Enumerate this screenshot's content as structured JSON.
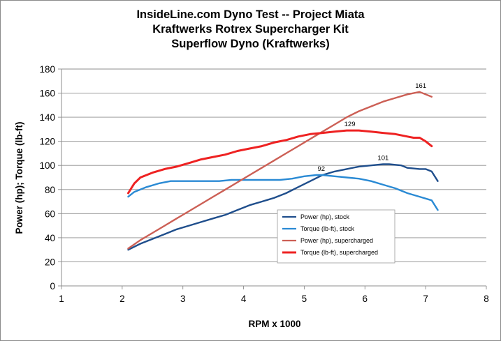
{
  "chart_data": {
    "type": "line",
    "title": "InsideLine.com Dyno Test -- Project Miata",
    "subtitle_1": "Kraftwerks Rotrex Supercharger Kit",
    "subtitle_2": "Superflow Dyno (Kraftwerks)",
    "xlabel": "RPM x 1000",
    "ylabel": "Power (hp); Torque (lb-ft)",
    "xlim": [
      1,
      8
    ],
    "ylim": [
      0,
      180
    ],
    "xticks": [
      "1",
      "2",
      "3",
      "4",
      "5",
      "6",
      "7",
      "8"
    ],
    "yticks": [
      "0",
      "20",
      "40",
      "60",
      "80",
      "100",
      "120",
      "140",
      "160",
      "180"
    ],
    "grid": "horizontal",
    "legend_position": "lower-center",
    "series": [
      {
        "name": "Power (hp), stock",
        "color": "#1f4e8c",
        "x": [
          2.1,
          2.3,
          2.5,
          2.7,
          2.9,
          3.1,
          3.3,
          3.5,
          3.7,
          3.9,
          4.1,
          4.3,
          4.5,
          4.7,
          4.9,
          5.1,
          5.3,
          5.5,
          5.7,
          5.9,
          6.1,
          6.3,
          6.4,
          6.6,
          6.7,
          6.9,
          7.0,
          7.1,
          7.2
        ],
        "y": [
          30,
          35,
          39,
          43,
          47,
          50,
          53,
          56,
          59,
          63,
          67,
          70,
          73,
          77,
          82,
          87,
          92,
          95,
          97,
          99,
          100,
          101,
          101,
          100,
          98,
          97,
          97,
          95,
          87
        ]
      },
      {
        "name": "Torque (lb-ft), stock",
        "color": "#2a8ad4",
        "x": [
          2.1,
          2.2,
          2.4,
          2.6,
          2.8,
          3.0,
          3.2,
          3.4,
          3.6,
          3.8,
          4.0,
          4.2,
          4.4,
          4.6,
          4.8,
          5.0,
          5.2,
          5.3,
          5.5,
          5.7,
          5.9,
          6.1,
          6.3,
          6.5,
          6.7,
          6.9,
          7.1,
          7.2
        ],
        "y": [
          74,
          78,
          82,
          85,
          87,
          87,
          87,
          87,
          87,
          88,
          88,
          88,
          88,
          88,
          89,
          91,
          92,
          92,
          91,
          90,
          89,
          87,
          84,
          81,
          77,
          74,
          71,
          63
        ]
      },
      {
        "name": "Power (hp), supercharged",
        "color": "#cc5f55",
        "x": [
          2.1,
          2.3,
          2.5,
          2.7,
          2.9,
          3.1,
          3.3,
          3.5,
          3.7,
          3.9,
          4.1,
          4.3,
          4.5,
          4.7,
          4.9,
          5.1,
          5.3,
          5.5,
          5.7,
          5.9,
          6.1,
          6.3,
          6.5,
          6.7,
          6.9,
          7.0,
          7.1
        ],
        "y": [
          31,
          38,
          44,
          50,
          56,
          62,
          68,
          74,
          80,
          86,
          92,
          98,
          104,
          110,
          116,
          122,
          128,
          134,
          140,
          145,
          149,
          153,
          156,
          159,
          161,
          159,
          157
        ]
      },
      {
        "name": "Torque (lb-ft), supercharged",
        "color": "#ee2222",
        "x": [
          2.1,
          2.2,
          2.3,
          2.5,
          2.7,
          2.9,
          3.1,
          3.3,
          3.5,
          3.7,
          3.9,
          4.1,
          4.3,
          4.5,
          4.7,
          4.9,
          5.1,
          5.3,
          5.5,
          5.7,
          5.9,
          6.1,
          6.3,
          6.5,
          6.7,
          6.8,
          6.9,
          7.0,
          7.1
        ],
        "y": [
          77,
          85,
          90,
          94,
          97,
          99,
          102,
          105,
          107,
          109,
          112,
          114,
          116,
          119,
          121,
          124,
          126,
          127,
          128,
          129,
          129,
          128,
          127,
          126,
          124,
          123,
          123,
          120,
          116
        ]
      }
    ],
    "annotations": [
      {
        "text": "161",
        "x": 6.92,
        "y": 161
      },
      {
        "text": "129",
        "x": 5.75,
        "y": 129
      },
      {
        "text": "101",
        "x": 6.3,
        "y": 101
      },
      {
        "text": "92",
        "x": 5.28,
        "y": 92
      }
    ]
  }
}
